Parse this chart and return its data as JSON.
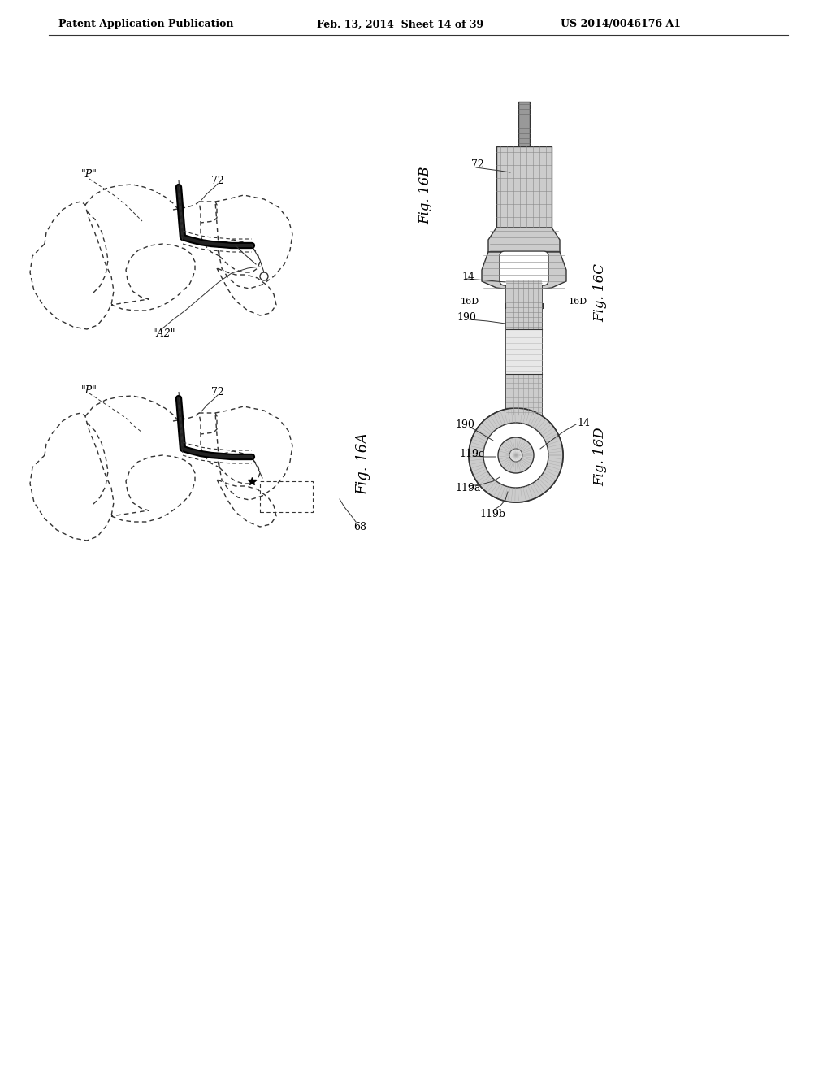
{
  "header_left": "Patent Application Publication",
  "header_center": "Feb. 13, 2014  Sheet 14 of 39",
  "header_right": "US 2014/0046176 A1",
  "background_color": "#ffffff",
  "line_color": "#333333",
  "gray_fill": "#aaaaaa",
  "light_gray": "#cccccc",
  "mid_gray": "#999999",
  "dark_gray": "#777777",
  "dotted_color": "#666666"
}
